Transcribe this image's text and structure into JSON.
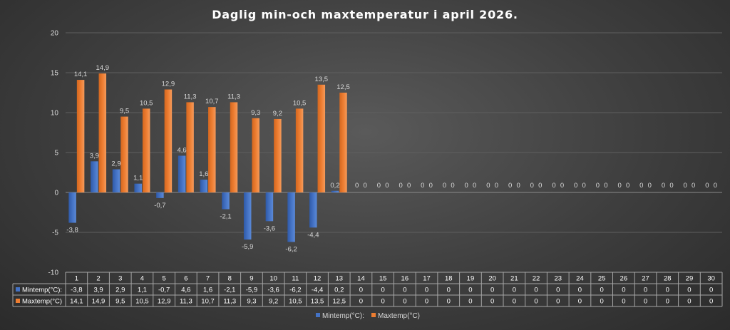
{
  "chart_data": {
    "type": "bar",
    "title": "Daglig min-och maxtemperatur i april 2026.",
    "categories": [
      "1",
      "2",
      "3",
      "4",
      "5",
      "6",
      "7",
      "8",
      "9",
      "10",
      "11",
      "12",
      "13",
      "14",
      "15",
      "16",
      "17",
      "18",
      "19",
      "20",
      "21",
      "22",
      "23",
      "24",
      "25",
      "26",
      "27",
      "28",
      "29",
      "30"
    ],
    "series": [
      {
        "name": "Mintemp(°C):",
        "color": "#4472c4",
        "values": [
          -3.8,
          3.9,
          2.9,
          1.1,
          -0.7,
          4.6,
          1.6,
          -2.1,
          -5.9,
          -3.6,
          -6.2,
          -4.4,
          0.2,
          0,
          0,
          0,
          0,
          0,
          0,
          0,
          0,
          0,
          0,
          0,
          0,
          0,
          0,
          0,
          0,
          0
        ],
        "labels": [
          "-3,8",
          "3,9",
          "2,9",
          "1,1",
          "-0,7",
          "4,6",
          "1,6",
          "-2,1",
          "-5,9",
          "-3,6",
          "-6,2",
          "-4,4",
          "0,2",
          "0",
          "0",
          "0",
          "0",
          "0",
          "0",
          "0",
          "0",
          "0",
          "0",
          "0",
          "0",
          "0",
          "0",
          "0",
          "0",
          "0"
        ]
      },
      {
        "name": "Maxtemp(°C)",
        "color": "#ed7d31",
        "values": [
          14.1,
          14.9,
          9.5,
          10.5,
          12.9,
          11.3,
          10.7,
          11.3,
          9.3,
          9.2,
          10.5,
          13.5,
          12.5,
          0,
          0,
          0,
          0,
          0,
          0,
          0,
          0,
          0,
          0,
          0,
          0,
          0,
          0,
          0,
          0,
          0
        ],
        "labels": [
          "14,1",
          "14,9",
          "9,5",
          "10,5",
          "12,9",
          "11,3",
          "10,7",
          "11,3",
          "9,3",
          "9,2",
          "10,5",
          "13,5",
          "12,5",
          "0",
          "0",
          "0",
          "0",
          "0",
          "0",
          "0",
          "0",
          "0",
          "0",
          "0",
          "0",
          "0",
          "0",
          "0",
          "0",
          "0"
        ]
      }
    ],
    "yticks": [
      "20",
      "15",
      "10",
      "5",
      "0",
      "-5",
      "-10"
    ],
    "ytick_values": [
      20,
      15,
      10,
      5,
      0,
      -5,
      -10
    ],
    "ylim": [
      -10,
      20
    ],
    "grid": true,
    "legend": "bottom",
    "data_table": true,
    "xlabel": "",
    "ylabel": ""
  }
}
